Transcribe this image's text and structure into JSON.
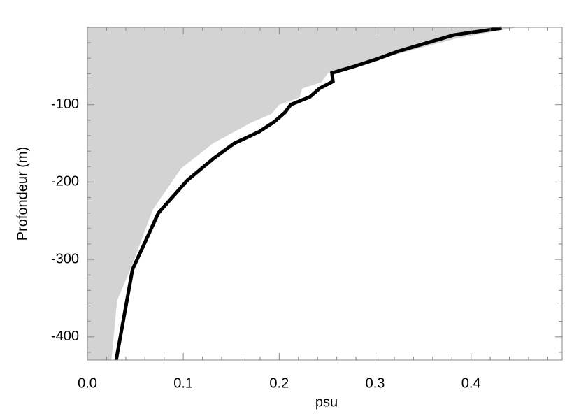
{
  "chart_data": {
    "type": "line",
    "x_label": "psu",
    "y_label": "Profondeur (m)",
    "xlim": [
      0,
      0.495
    ],
    "ylim": [
      -430,
      0
    ],
    "xticks": [
      {
        "value": 0,
        "label": "0.0"
      },
      0.1,
      0.2,
      0.3,
      0.4
    ],
    "yticks": [
      -100,
      -200,
      -300,
      -400
    ],
    "xminor_ticks": [
      0.02,
      0.04,
      0.06,
      0.08,
      0.12,
      0.14,
      0.16,
      0.18,
      0.22,
      0.24,
      0.26,
      0.28,
      0.32,
      0.34,
      0.36,
      0.38,
      0.42,
      0.44,
      0.46,
      0.48
    ],
    "yminor_ticks": [
      -20,
      -40,
      -60,
      -80,
      -120,
      -140,
      -160,
      -180,
      -220,
      -240,
      -260,
      -280,
      -320,
      -340,
      -360,
      -380,
      -420
    ],
    "series": [
      {
        "style": "area",
        "color": "#d3d3d3",
        "x": [
          0.448,
          0.386,
          0.328,
          0.288,
          0.251,
          0.244,
          0.224,
          0.221,
          0.2,
          0.192,
          0.171,
          0.131,
          0.098,
          0.068,
          0.047,
          0.031,
          0.025
        ],
        "values": [
          0,
          -14,
          -33,
          -46,
          -59,
          -71,
          -79,
          -91,
          -100,
          -112,
          -123,
          -150,
          -182,
          -236,
          -306,
          -353,
          -430
        ]
      },
      {
        "style": "line",
        "color": "#000000",
        "x": [
          0.432,
          0.382,
          0.324,
          0.302,
          0.277,
          0.255,
          0.256,
          0.242,
          0.232,
          0.212,
          0.206,
          0.195,
          0.179,
          0.153,
          0.132,
          0.104,
          0.074,
          0.047,
          0.03
        ],
        "values": [
          -1,
          -10,
          -31,
          -41,
          -51,
          -59,
          -70,
          -79,
          -90,
          -100,
          -110,
          -122,
          -135,
          -150,
          -169,
          -198,
          -240,
          -313,
          -430
        ]
      }
    ]
  }
}
